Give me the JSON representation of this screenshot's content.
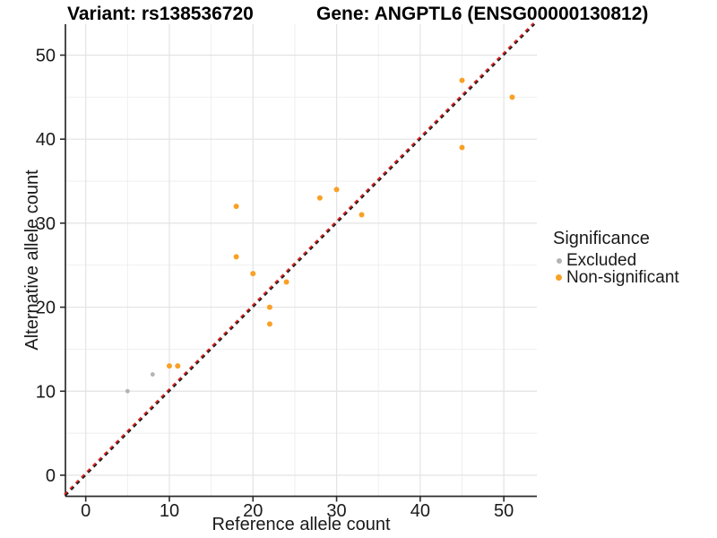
{
  "header": {
    "title_left": "Variant: rs138536720",
    "title_right": "Gene: ANGPTL6 (ENSG00000130812)"
  },
  "chart_data": {
    "type": "scatter",
    "xlabel": "Reference allele count",
    "ylabel": "Alternative allele count",
    "xlim": [
      -2.43,
      53.95
    ],
    "ylim": [
      -2.51,
      53.68
    ],
    "xticks": [
      0,
      10,
      20,
      30,
      40,
      50
    ],
    "yticks": [
      0,
      10,
      20,
      30,
      40,
      50
    ],
    "xticks_minor": [
      5,
      15,
      25,
      35,
      45
    ],
    "yticks_minor": [
      5,
      15,
      25,
      35,
      45
    ],
    "grid": true,
    "legend_position": "right",
    "legend": {
      "title": "Significance"
    },
    "identity_line": {
      "style": "dashed",
      "slope": 1,
      "intercept": 0,
      "color_red": "#E0201C",
      "color_dark": "#1F1F1F"
    },
    "colors": {
      "axis_line": "#2B2B2B",
      "grid_major": "#E3E3E3",
      "grid_minor": "#EDEDED"
    },
    "series": [
      {
        "name": "Excluded",
        "color": "#B3B3B5",
        "point_radius": 2.4,
        "points": [
          [
            5,
            10
          ],
          [
            8,
            12
          ]
        ]
      },
      {
        "name": "Non-significant",
        "color": "#F9A026",
        "point_radius": 3,
        "points": [
          [
            10,
            13
          ],
          [
            11,
            13
          ],
          [
            18,
            26
          ],
          [
            18,
            32
          ],
          [
            20,
            24
          ],
          [
            22,
            18
          ],
          [
            22,
            20
          ],
          [
            24,
            23
          ],
          [
            28,
            33
          ],
          [
            30,
            34
          ],
          [
            33,
            31
          ],
          [
            45,
            39
          ],
          [
            45,
            47
          ],
          [
            51,
            45
          ]
        ]
      }
    ]
  }
}
